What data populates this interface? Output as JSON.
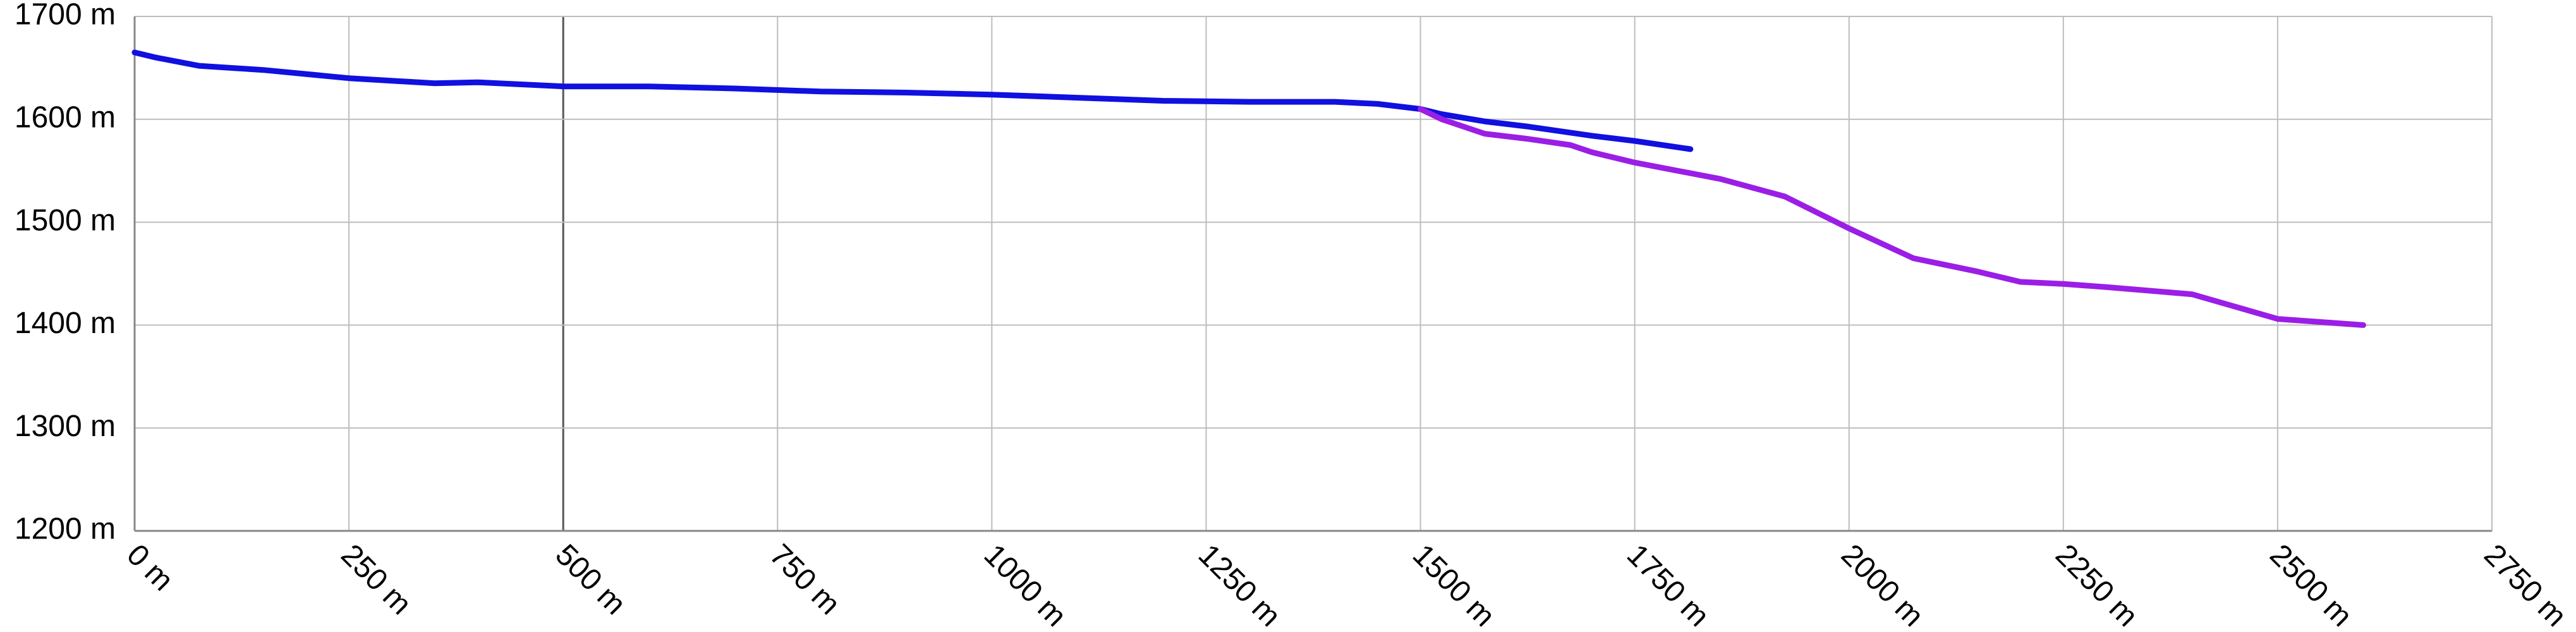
{
  "chart_data": {
    "type": "line",
    "title": "",
    "xlabel": "",
    "ylabel": "",
    "xlim": [
      0,
      2750
    ],
    "ylim": [
      1200,
      1700
    ],
    "grid": true,
    "legend": "none",
    "x_ticks": [
      0,
      250,
      500,
      750,
      1000,
      1250,
      1500,
      1750,
      2000,
      2250,
      2500,
      2750
    ],
    "y_ticks": [
      1200,
      1300,
      1400,
      1500,
      1600,
      1700
    ],
    "x_tick_labels": [
      "0 m",
      "250 m",
      "500 m",
      "750 m",
      "1000 m",
      "1250 m",
      "1500 m",
      "1750 m",
      "2000 m",
      "2250 m",
      "2500 m",
      "2750 m"
    ],
    "y_tick_labels": [
      "1200 m",
      "1300 m",
      "1400 m",
      "1500 m",
      "1600 m",
      "1700 m"
    ],
    "emphasized_gridline_x": 500,
    "series": [
      {
        "color": "#1010e0",
        "x": [
          0,
          25,
          75,
          150,
          250,
          350,
          400,
          500,
          600,
          700,
          800,
          900,
          1000,
          1100,
          1200,
          1300,
          1400,
          1450,
          1500,
          1525,
          1575,
          1625,
          1700,
          1750,
          1815
        ],
        "y": [
          1665,
          1660,
          1652,
          1648,
          1640,
          1635,
          1636,
          1632,
          1632,
          1630,
          1627,
          1626,
          1624,
          1621,
          1618,
          1617,
          1617,
          1615,
          1610,
          1605,
          1598,
          1593,
          1584,
          1579,
          1571
        ]
      },
      {
        "color": "#9b1ee6",
        "x": [
          1500,
          1525,
          1575,
          1625,
          1675,
          1700,
          1750,
          1850,
          1925,
          2000,
          2075,
          2150,
          2200,
          2250,
          2300,
          2400,
          2450,
          2500,
          2550,
          2600
        ],
        "y": [
          1610,
          1600,
          1586,
          1581,
          1575,
          1568,
          1558,
          1542,
          1525,
          1494,
          1465,
          1452,
          1442,
          1440,
          1437,
          1430,
          1418,
          1406,
          1403,
          1400
        ]
      }
    ]
  }
}
